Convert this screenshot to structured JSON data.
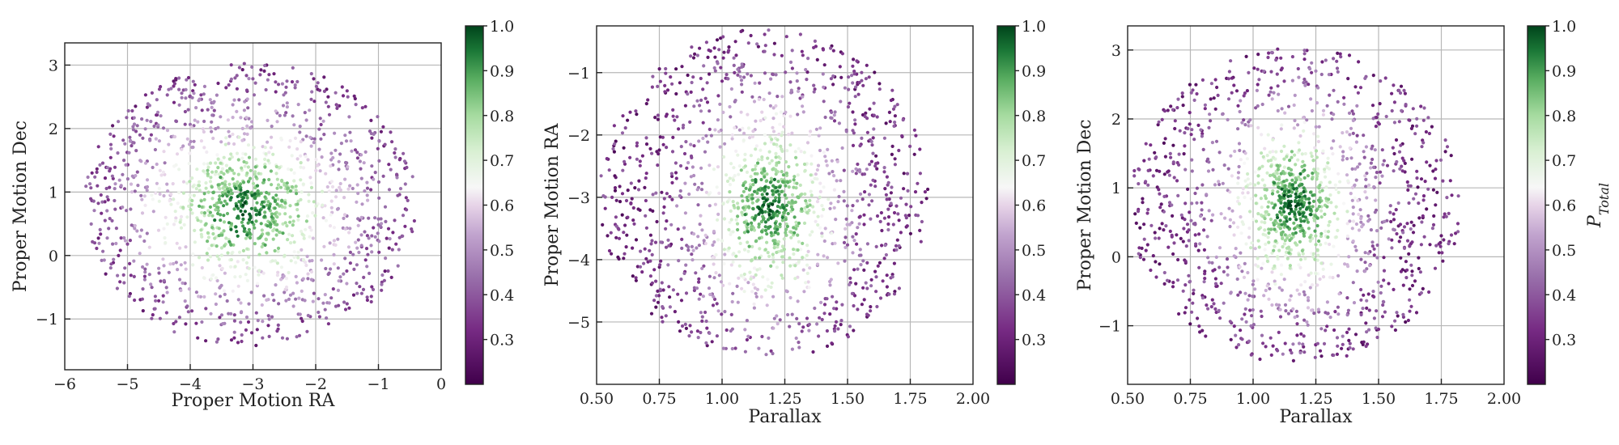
{
  "chart_data": [
    {
      "type": "scatter",
      "xlabel": "Proper Motion RA",
      "ylabel": "Proper Motion Dec",
      "xlim": [
        -6,
        0
      ],
      "ylim": [
        -1.8,
        3.35
      ],
      "xticks": [
        -6,
        -5,
        -4,
        -3,
        -2,
        -1,
        0
      ],
      "xtick_labels": [
        "−6",
        "−5",
        "−4",
        "−3",
        "−2",
        "−1",
        "0"
      ],
      "yticks": [
        -1,
        0,
        1,
        2,
        3
      ],
      "ytick_labels": [
        "−1",
        "0",
        "1",
        "2",
        "3"
      ],
      "grid": true,
      "cluster": {
        "x": -3.1,
        "y": 0.75,
        "sx": 0.5,
        "sy": 0.42
      },
      "field": {
        "x": -3.05,
        "y": 0.8,
        "r_x": 2.65,
        "r_y": 2.25
      },
      "point_count": 1500,
      "colorbar": {
        "min": 0.2,
        "max": 1.0,
        "ticks": [
          0.3,
          0.4,
          0.5,
          0.6,
          0.7,
          0.8,
          0.9,
          1.0
        ],
        "tick_labels": [
          "0.3",
          "0.4",
          "0.5",
          "0.6",
          "0.7",
          "0.8",
          "0.9",
          "1.0"
        ],
        "label": ""
      }
    },
    {
      "type": "scatter",
      "xlabel": "Parallax",
      "ylabel": "Proper Motion RA",
      "xlim": [
        0.5,
        2.0
      ],
      "ylim": [
        -6.0,
        -0.25
      ],
      "xticks": [
        0.5,
        0.75,
        1.0,
        1.25,
        1.5,
        1.75,
        2.0
      ],
      "xtick_labels": [
        "0.50",
        "0.75",
        "1.00",
        "1.25",
        "1.50",
        "1.75",
        "2.00"
      ],
      "yticks": [
        -5,
        -4,
        -3,
        -2,
        -1
      ],
      "ytick_labels": [
        "−5",
        "−4",
        "−3",
        "−2",
        "−1"
      ],
      "grid": true,
      "cluster": {
        "x": 1.19,
        "y": -3.15,
        "sx": 0.085,
        "sy": 0.5
      },
      "field": {
        "x": 1.17,
        "y": -2.95,
        "r_x": 0.66,
        "r_y": 2.65
      },
      "point_count": 1500,
      "colorbar": {
        "min": 0.2,
        "max": 1.0,
        "ticks": [
          0.3,
          0.4,
          0.5,
          0.6,
          0.7,
          0.8,
          0.9,
          1.0
        ],
        "tick_labels": [
          "0.3",
          "0.4",
          "0.5",
          "0.6",
          "0.7",
          "0.8",
          "0.9",
          "1.0"
        ],
        "label": ""
      }
    },
    {
      "type": "scatter",
      "xlabel": "Parallax",
      "ylabel": "Proper Motion Dec",
      "xlim": [
        0.5,
        2.0
      ],
      "ylim": [
        -1.85,
        3.35
      ],
      "xticks": [
        0.5,
        0.75,
        1.0,
        1.25,
        1.5,
        1.75,
        2.0
      ],
      "xtick_labels": [
        "0.50",
        "0.75",
        "1.00",
        "1.25",
        "1.50",
        "1.75",
        "2.00"
      ],
      "yticks": [
        -1,
        0,
        1,
        2,
        3
      ],
      "ytick_labels": [
        "−1",
        "0",
        "1",
        "2",
        "3"
      ],
      "grid": true,
      "cluster": {
        "x": 1.16,
        "y": 0.75,
        "sx": 0.085,
        "sy": 0.42
      },
      "field": {
        "x": 1.17,
        "y": 0.75,
        "r_x": 0.66,
        "r_y": 2.3
      },
      "point_count": 1500,
      "colorbar": {
        "min": 0.2,
        "max": 1.0,
        "ticks": [
          0.3,
          0.4,
          0.5,
          0.6,
          0.7,
          0.8,
          0.9,
          1.0
        ],
        "tick_labels": [
          "0.3",
          "0.4",
          "0.5",
          "0.6",
          "0.7",
          "0.8",
          "0.9",
          "1.0"
        ],
        "label": "P_Total"
      }
    }
  ],
  "colormap": {
    "name": "PRGn",
    "stops": [
      {
        "at": 0.0,
        "color": "#40004b"
      },
      {
        "at": 0.15,
        "color": "#762a83"
      },
      {
        "at": 0.3,
        "color": "#9970ab"
      },
      {
        "at": 0.42,
        "color": "#c2a5cf"
      },
      {
        "at": 0.5,
        "color": "#e7d4e8"
      },
      {
        "at": 0.55,
        "color": "#f7f7f7"
      },
      {
        "at": 0.65,
        "color": "#d9f0d3"
      },
      {
        "at": 0.75,
        "color": "#a6dba0"
      },
      {
        "at": 0.85,
        "color": "#5aae61"
      },
      {
        "at": 0.93,
        "color": "#1b7837"
      },
      {
        "at": 1.0,
        "color": "#00441b"
      }
    ]
  }
}
